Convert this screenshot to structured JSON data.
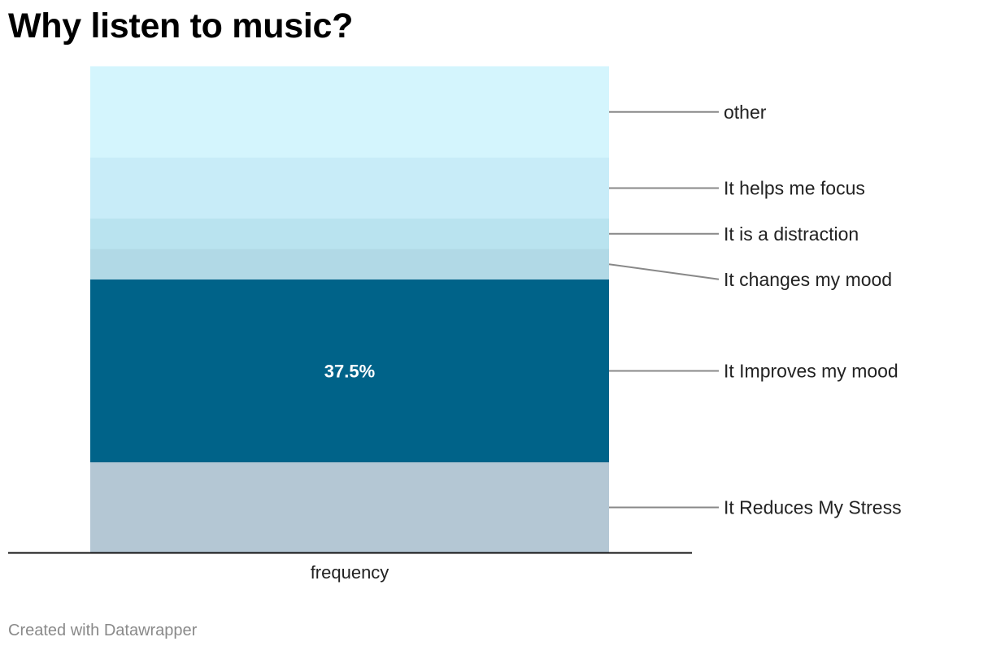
{
  "title": "Why listen to music?",
  "footer": "Created with Datawrapper",
  "chart_data": {
    "type": "bar",
    "stacked": true,
    "orientation": "vertical",
    "categories": [
      "frequency"
    ],
    "series": [
      {
        "name": "It Reduces My Stress",
        "values": [
          18.5
        ],
        "color": "#b4c7d4"
      },
      {
        "name": "It Improves my mood",
        "values": [
          37.5
        ],
        "color": "#006389",
        "label": "37.5%"
      },
      {
        "name": "It changes my mood",
        "values": [
          6.25
        ],
        "color": "#b1d9e6"
      },
      {
        "name": "It is a distraction",
        "values": [
          6.25
        ],
        "color": "#b9e3ef"
      },
      {
        "name": "It helps me focus",
        "values": [
          12.5
        ],
        "color": "#c8ecf8"
      },
      {
        "name": "other",
        "values": [
          18.75
        ],
        "color": "#d4f5fd"
      }
    ],
    "ylim": [
      0,
      100
    ],
    "xlabel": "frequency",
    "ylabel": "",
    "legend": "right, inline with connector lines",
    "grid": false
  }
}
